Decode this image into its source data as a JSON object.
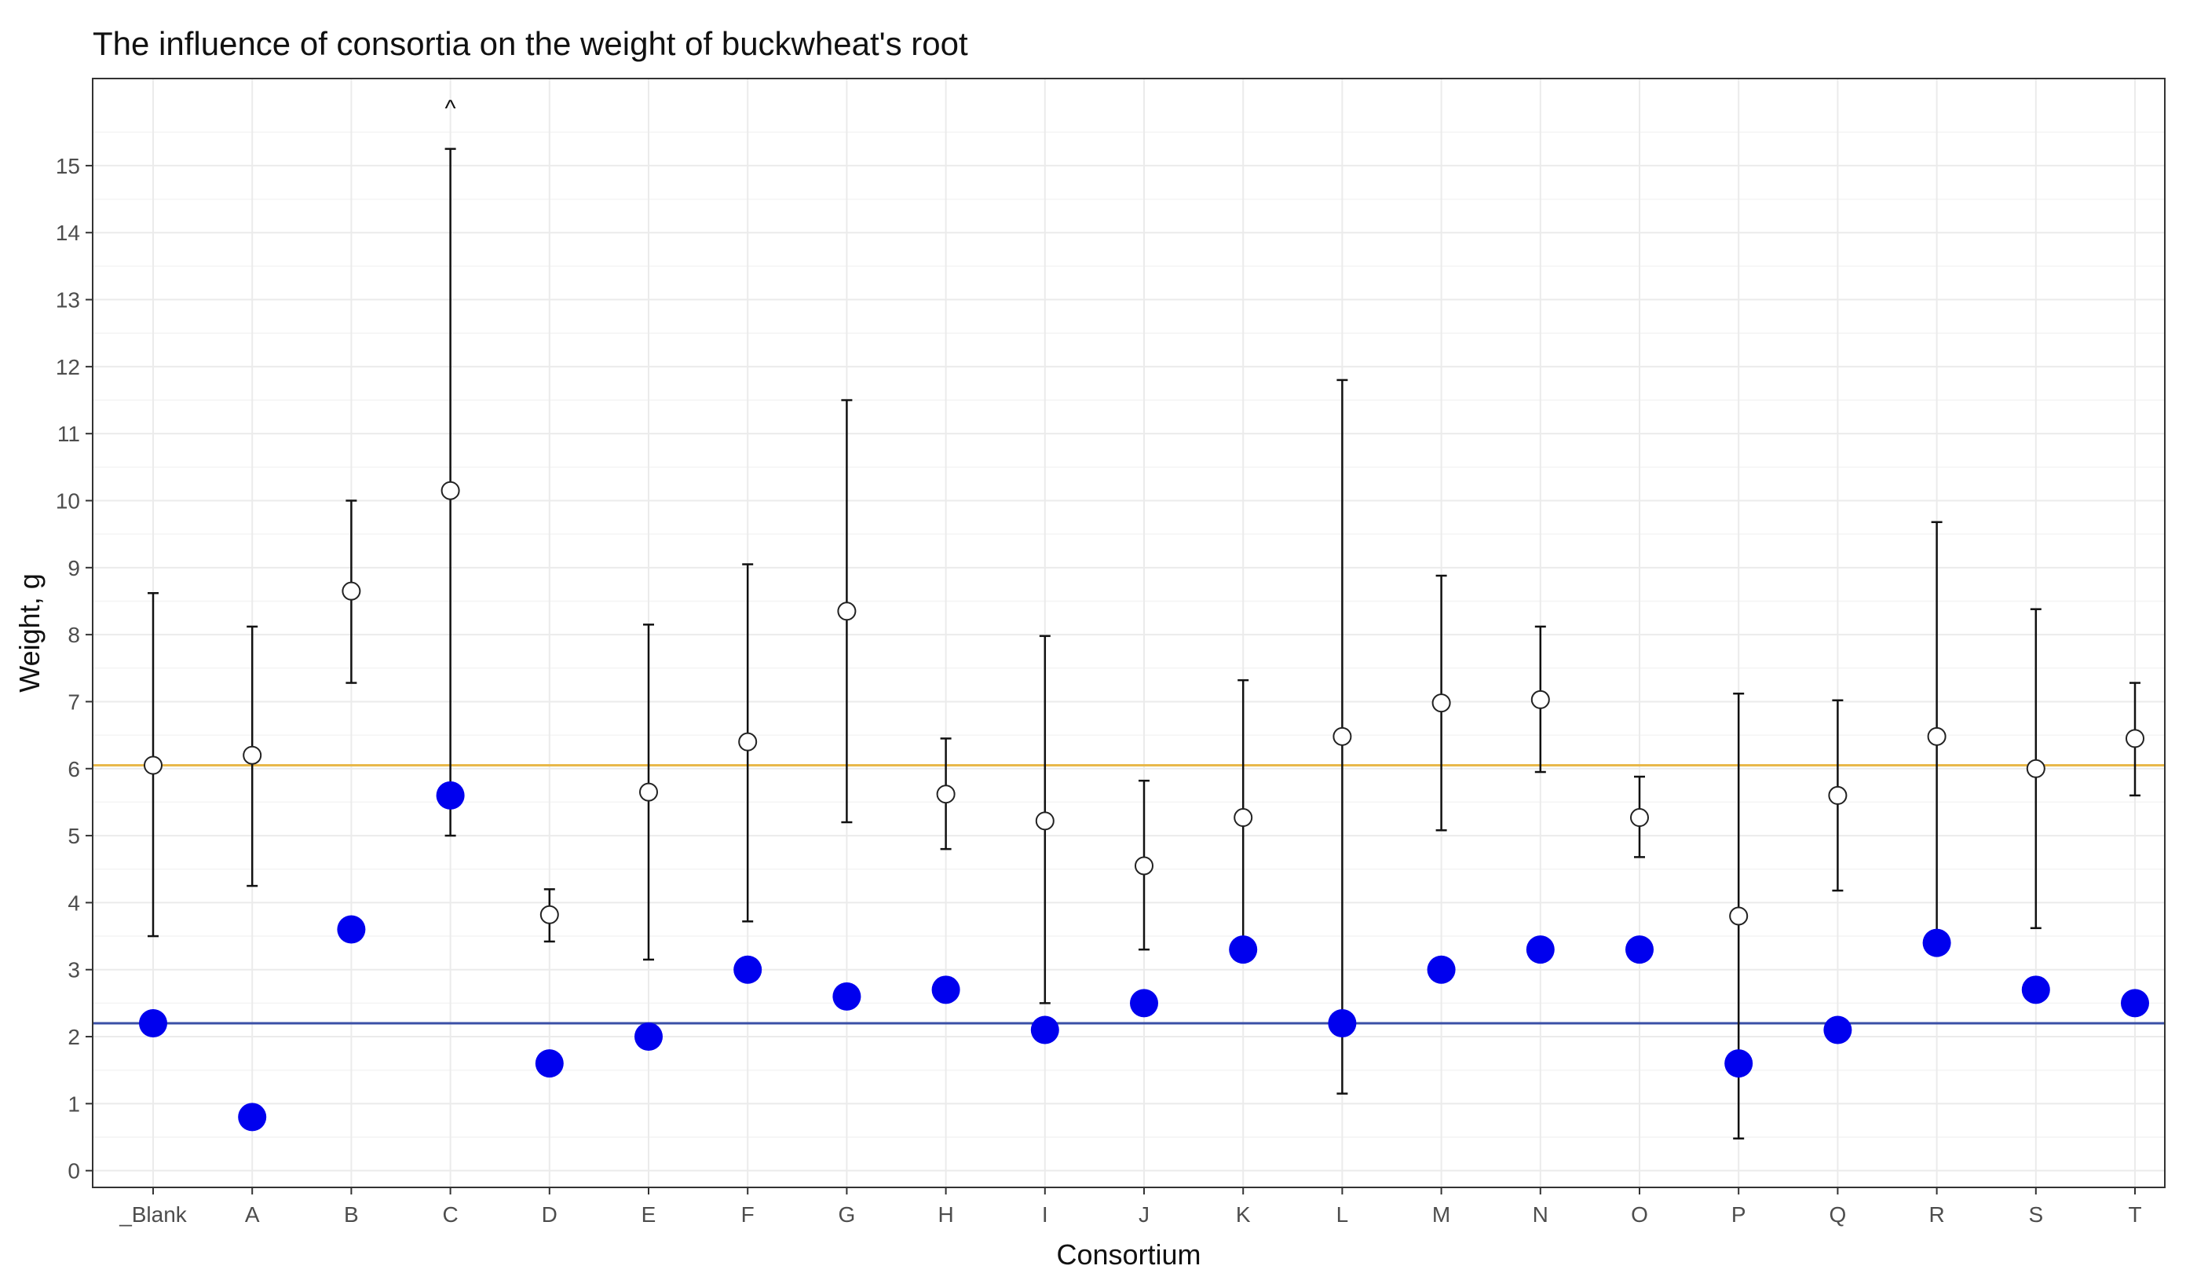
{
  "chart_data": {
    "type": "scatter",
    "title": "The influence of consortia on the weight of buckwheat's root",
    "xlabel": "Consortium",
    "ylabel": "Weight, g",
    "categories": [
      "_Blank",
      "A",
      "B",
      "C",
      "D",
      "E",
      "F",
      "G",
      "H",
      "I",
      "J",
      "K",
      "L",
      "M",
      "N",
      "O",
      "P",
      "Q",
      "R",
      "S",
      "T"
    ],
    "ylim": [
      -0.25,
      16.3
    ],
    "yticks": [
      0,
      1,
      2,
      3,
      4,
      5,
      6,
      7,
      8,
      9,
      10,
      11,
      12,
      13,
      14,
      15
    ],
    "grid": true,
    "legend": "none",
    "series": [
      {
        "marker": "open-circle",
        "color": "#ffffff",
        "stroke": "#222222",
        "mean": [
          6.05,
          6.2,
          8.65,
          10.15,
          3.82,
          5.65,
          6.4,
          8.35,
          5.62,
          5.22,
          4.55,
          5.27,
          6.48,
          6.98,
          7.03,
          5.27,
          3.8,
          5.6,
          6.48,
          6.0,
          6.45
        ],
        "lower": [
          3.5,
          4.25,
          7.28,
          5.0,
          3.42,
          3.15,
          3.72,
          5.2,
          4.8,
          2.5,
          3.3,
          3.32,
          1.15,
          5.08,
          5.95,
          4.68,
          0.48,
          4.18,
          3.32,
          3.62,
          5.6
        ],
        "upper": [
          8.62,
          8.12,
          10.0,
          15.25,
          4.2,
          8.15,
          9.05,
          11.5,
          6.45,
          7.98,
          5.82,
          7.32,
          11.8,
          8.88,
          8.12,
          5.88,
          7.12,
          7.02,
          9.68,
          8.38,
          7.28
        ]
      },
      {
        "marker": "filled-circle",
        "color": "#0000ee",
        "values": [
          2.2,
          0.8,
          3.6,
          5.6,
          1.6,
          2.0,
          3.0,
          2.6,
          2.7,
          2.1,
          2.5,
          3.3,
          2.2,
          3.0,
          3.3,
          3.3,
          1.6,
          2.1,
          3.4,
          2.7,
          2.5
        ]
      }
    ],
    "reference_lines": [
      {
        "y": 6.05,
        "color": "#e8b84a"
      },
      {
        "y": 2.2,
        "color": "#3a4fa6"
      }
    ],
    "annotations": [
      {
        "category": "C",
        "y": 15.9,
        "text": "^"
      }
    ]
  }
}
